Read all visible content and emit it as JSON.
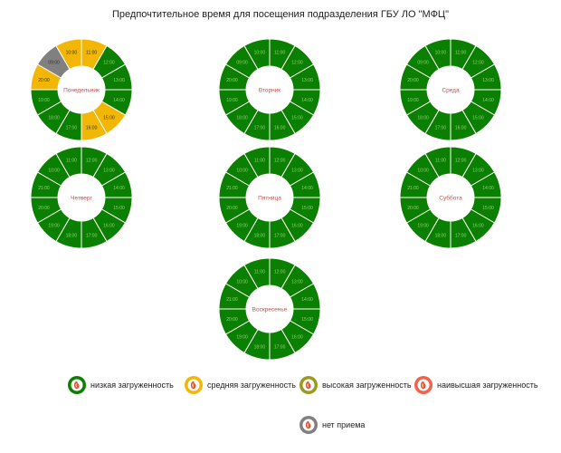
{
  "title": "Предпочтительное время для посещения подразделения ГБУ ЛО \"МФЦ\"",
  "colors": {
    "low": "#0b8000",
    "medium": "#f2b705",
    "high": "#9a9a1c",
    "highest": "#f0624a",
    "closed": "#808080",
    "day_label": "#c0504d",
    "separator": "#ffffff"
  },
  "chart_data": {
    "type": "donut",
    "series_hint": "load level per hour slot",
    "days": [
      {
        "label": "Понедельник",
        "slots": [
          "11:00",
          "12:00",
          "13:00",
          "14:00",
          "15:00",
          "16:00",
          "17:00",
          "18:00",
          "19:00",
          "20:00",
          "09:00",
          "10:00"
        ],
        "levels": [
          "medium",
          "low",
          "low",
          "low",
          "medium",
          "medium",
          "low",
          "low",
          "low",
          "medium",
          "closed",
          "medium"
        ]
      },
      {
        "label": "Вторник",
        "slots": [
          "11:00",
          "12:00",
          "13:00",
          "14:00",
          "15:00",
          "16:00",
          "17:00",
          "18:00",
          "19:00",
          "20:00",
          "09:00",
          "10:00"
        ],
        "levels": [
          "low",
          "low",
          "low",
          "low",
          "low",
          "low",
          "low",
          "low",
          "low",
          "low",
          "low",
          "low"
        ]
      },
      {
        "label": "Среда",
        "slots": [
          "11:00",
          "12:00",
          "13:00",
          "14:00",
          "15:00",
          "16:00",
          "17:00",
          "18:00",
          "19:00",
          "20:00",
          "09:00",
          "10:00"
        ],
        "levels": [
          "low",
          "low",
          "low",
          "low",
          "low",
          "low",
          "low",
          "low",
          "low",
          "low",
          "low",
          "low"
        ]
      },
      {
        "label": "Четверг",
        "slots": [
          "12:00",
          "13:00",
          "14:00",
          "15:00",
          "16:00",
          "17:00",
          "18:00",
          "19:00",
          "20:00",
          "21:00",
          "10:00",
          "11:00"
        ],
        "levels": [
          "low",
          "low",
          "low",
          "low",
          "low",
          "low",
          "low",
          "low",
          "low",
          "low",
          "low",
          "low"
        ]
      },
      {
        "label": "Пятница",
        "slots": [
          "12:00",
          "13:00",
          "14:00",
          "15:00",
          "16:00",
          "17:00",
          "18:00",
          "19:00",
          "20:00",
          "21:00",
          "10:00",
          "11:00"
        ],
        "levels": [
          "low",
          "low",
          "low",
          "low",
          "low",
          "low",
          "low",
          "low",
          "low",
          "low",
          "low",
          "low"
        ]
      },
      {
        "label": "Суббота",
        "slots": [
          "12:00",
          "13:00",
          "14:00",
          "15:00",
          "16:00",
          "17:00",
          "18:00",
          "19:00",
          "20:00",
          "21:00",
          "10:00",
          "11:00"
        ],
        "levels": [
          "low",
          "low",
          "low",
          "low",
          "low",
          "low",
          "low",
          "low",
          "low",
          "low",
          "low",
          "low"
        ]
      },
      {
        "label": "Воскресенье",
        "slots": [
          "12:00",
          "13:00",
          "14:00",
          "15:00",
          "16:00",
          "17:00",
          "18:00",
          "19:00",
          "20:00",
          "21:00",
          "10:00",
          "11:00"
        ],
        "levels": [
          "low",
          "low",
          "low",
          "low",
          "low",
          "low",
          "low",
          "low",
          "low",
          "low",
          "low",
          "low"
        ]
      }
    ],
    "legend": [
      {
        "key": "low",
        "label": "низкая загруженность"
      },
      {
        "key": "medium",
        "label": "средняя загруженность"
      },
      {
        "key": "high",
        "label": "высокая загруженность"
      },
      {
        "key": "highest",
        "label": "наивысшая загруженность"
      },
      {
        "key": "closed",
        "label": "нет приема"
      }
    ]
  }
}
